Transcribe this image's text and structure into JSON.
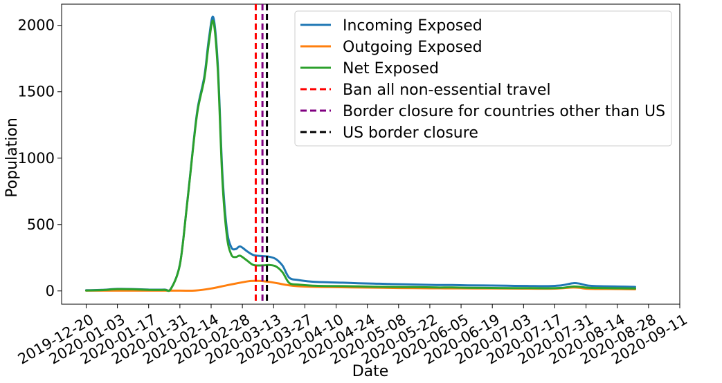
{
  "chart_data": {
    "type": "line",
    "xlabel": "Date",
    "ylabel": "Population",
    "xlim": [
      "2019-12-09",
      "2020-09-11"
    ],
    "ylim": [
      -100,
      2160
    ],
    "x_ticks": [
      "2019-12-20",
      "2020-01-03",
      "2020-01-17",
      "2020-01-31",
      "2020-02-14",
      "2020-02-28",
      "2020-03-13",
      "2020-03-27",
      "2020-04-10",
      "2020-04-24",
      "2020-05-08",
      "2020-05-22",
      "2020-06-05",
      "2020-06-19",
      "2020-07-03",
      "2020-07-17",
      "2020-07-31",
      "2020-08-14",
      "2020-08-28",
      "2020-09-11"
    ],
    "y_ticks": [
      "0",
      "500",
      "1000",
      "1500",
      "2000"
    ],
    "y_tick_values": [
      0,
      500,
      1000,
      1500,
      2000
    ],
    "legend_position": "top-right",
    "series": [
      {
        "name": "Incoming Exposed",
        "color": "#1f77b4",
        "points": [
          [
            "2019-12-20",
            5
          ],
          [
            "2019-12-27",
            8
          ],
          [
            "2020-01-03",
            15
          ],
          [
            "2020-01-10",
            14
          ],
          [
            "2020-01-17",
            10
          ],
          [
            "2020-01-24",
            10
          ],
          [
            "2020-01-27",
            18
          ],
          [
            "2020-01-31",
            200
          ],
          [
            "2020-02-03",
            620
          ],
          [
            "2020-02-06",
            1100
          ],
          [
            "2020-02-08",
            1380
          ],
          [
            "2020-02-11",
            1620
          ],
          [
            "2020-02-13",
            1900
          ],
          [
            "2020-02-15",
            2060
          ],
          [
            "2020-02-17",
            1700
          ],
          [
            "2020-02-19",
            900
          ],
          [
            "2020-02-21",
            470
          ],
          [
            "2020-02-23",
            330
          ],
          [
            "2020-02-25",
            315
          ],
          [
            "2020-02-27",
            335
          ],
          [
            "2020-03-01",
            300
          ],
          [
            "2020-03-04",
            270
          ],
          [
            "2020-03-08",
            262
          ],
          [
            "2020-03-11",
            258
          ],
          [
            "2020-03-14",
            240
          ],
          [
            "2020-03-17",
            190
          ],
          [
            "2020-03-20",
            100
          ],
          [
            "2020-03-24",
            82
          ],
          [
            "2020-03-30",
            70
          ],
          [
            "2020-04-06",
            65
          ],
          [
            "2020-04-13",
            62
          ],
          [
            "2020-04-20",
            58
          ],
          [
            "2020-04-27",
            55
          ],
          [
            "2020-05-04",
            52
          ],
          [
            "2020-05-11",
            50
          ],
          [
            "2020-05-18",
            47
          ],
          [
            "2020-05-25",
            45
          ],
          [
            "2020-06-01",
            44
          ],
          [
            "2020-06-08",
            42
          ],
          [
            "2020-06-15",
            41
          ],
          [
            "2020-06-22",
            40
          ],
          [
            "2020-06-29",
            38
          ],
          [
            "2020-07-06",
            37
          ],
          [
            "2020-07-13",
            36
          ],
          [
            "2020-07-20",
            42
          ],
          [
            "2020-07-25",
            58
          ],
          [
            "2020-07-28",
            55
          ],
          [
            "2020-08-01",
            40
          ],
          [
            "2020-08-08",
            35
          ],
          [
            "2020-08-15",
            33
          ],
          [
            "2020-08-22",
            30
          ]
        ]
      },
      {
        "name": "Outgoing Exposed",
        "color": "#ff7f0e",
        "points": [
          [
            "2019-12-20",
            2
          ],
          [
            "2020-01-03",
            2
          ],
          [
            "2020-01-17",
            2
          ],
          [
            "2020-01-31",
            2
          ],
          [
            "2020-02-07",
            3
          ],
          [
            "2020-02-14",
            18
          ],
          [
            "2020-02-21",
            42
          ],
          [
            "2020-02-28",
            65
          ],
          [
            "2020-03-03",
            75
          ],
          [
            "2020-03-07",
            75
          ],
          [
            "2020-03-11",
            68
          ],
          [
            "2020-03-15",
            57
          ],
          [
            "2020-03-20",
            42
          ],
          [
            "2020-03-27",
            33
          ],
          [
            "2020-04-10",
            28
          ],
          [
            "2020-04-24",
            25
          ],
          [
            "2020-05-08",
            22
          ],
          [
            "2020-05-22",
            20
          ],
          [
            "2020-06-05",
            19
          ],
          [
            "2020-06-19",
            18
          ],
          [
            "2020-07-03",
            17
          ],
          [
            "2020-07-17",
            17
          ],
          [
            "2020-07-24",
            25
          ],
          [
            "2020-07-28",
            24
          ],
          [
            "2020-08-01",
            16
          ],
          [
            "2020-08-14",
            14
          ],
          [
            "2020-08-22",
            12
          ]
        ]
      },
      {
        "name": "Net Exposed",
        "color": "#2ca02c",
        "points": [
          [
            "2019-12-20",
            3
          ],
          [
            "2019-12-27",
            6
          ],
          [
            "2020-01-03",
            13
          ],
          [
            "2020-01-10",
            12
          ],
          [
            "2020-01-17",
            8
          ],
          [
            "2020-01-24",
            8
          ],
          [
            "2020-01-27",
            16
          ],
          [
            "2020-01-31",
            198
          ],
          [
            "2020-02-03",
            615
          ],
          [
            "2020-02-06",
            1090
          ],
          [
            "2020-02-08",
            1365
          ],
          [
            "2020-02-11",
            1600
          ],
          [
            "2020-02-13",
            1870
          ],
          [
            "2020-02-15",
            2030
          ],
          [
            "2020-02-17",
            1660
          ],
          [
            "2020-02-19",
            850
          ],
          [
            "2020-02-21",
            420
          ],
          [
            "2020-02-23",
            275
          ],
          [
            "2020-02-25",
            255
          ],
          [
            "2020-02-27",
            265
          ],
          [
            "2020-03-01",
            230
          ],
          [
            "2020-03-04",
            195
          ],
          [
            "2020-03-08",
            192
          ],
          [
            "2020-03-11",
            195
          ],
          [
            "2020-03-14",
            185
          ],
          [
            "2020-03-17",
            140
          ],
          [
            "2020-03-20",
            60
          ],
          [
            "2020-03-24",
            48
          ],
          [
            "2020-03-30",
            40
          ],
          [
            "2020-04-06",
            37
          ],
          [
            "2020-04-13",
            36
          ],
          [
            "2020-04-20",
            34
          ],
          [
            "2020-04-27",
            32
          ],
          [
            "2020-05-04",
            30
          ],
          [
            "2020-05-11",
            29
          ],
          [
            "2020-05-18",
            28
          ],
          [
            "2020-05-25",
            26
          ],
          [
            "2020-06-01",
            26
          ],
          [
            "2020-06-08",
            24
          ],
          [
            "2020-06-15",
            23
          ],
          [
            "2020-06-22",
            22
          ],
          [
            "2020-06-29",
            21
          ],
          [
            "2020-07-06",
            21
          ],
          [
            "2020-07-13",
            20
          ],
          [
            "2020-07-20",
            23
          ],
          [
            "2020-07-25",
            33
          ],
          [
            "2020-07-28",
            31
          ],
          [
            "2020-08-01",
            24
          ],
          [
            "2020-08-08",
            21
          ],
          [
            "2020-08-15",
            20
          ],
          [
            "2020-08-22",
            18
          ]
        ]
      }
    ],
    "vlines": [
      {
        "name": "Ban all non-essential travel",
        "date": "2020-03-05",
        "color": "#ff0000"
      },
      {
        "name": "Border closure for countries other than US",
        "date": "2020-03-08",
        "color": "#800080"
      },
      {
        "name": "US border closure",
        "date": "2020-03-10",
        "color": "#000000"
      }
    ]
  }
}
